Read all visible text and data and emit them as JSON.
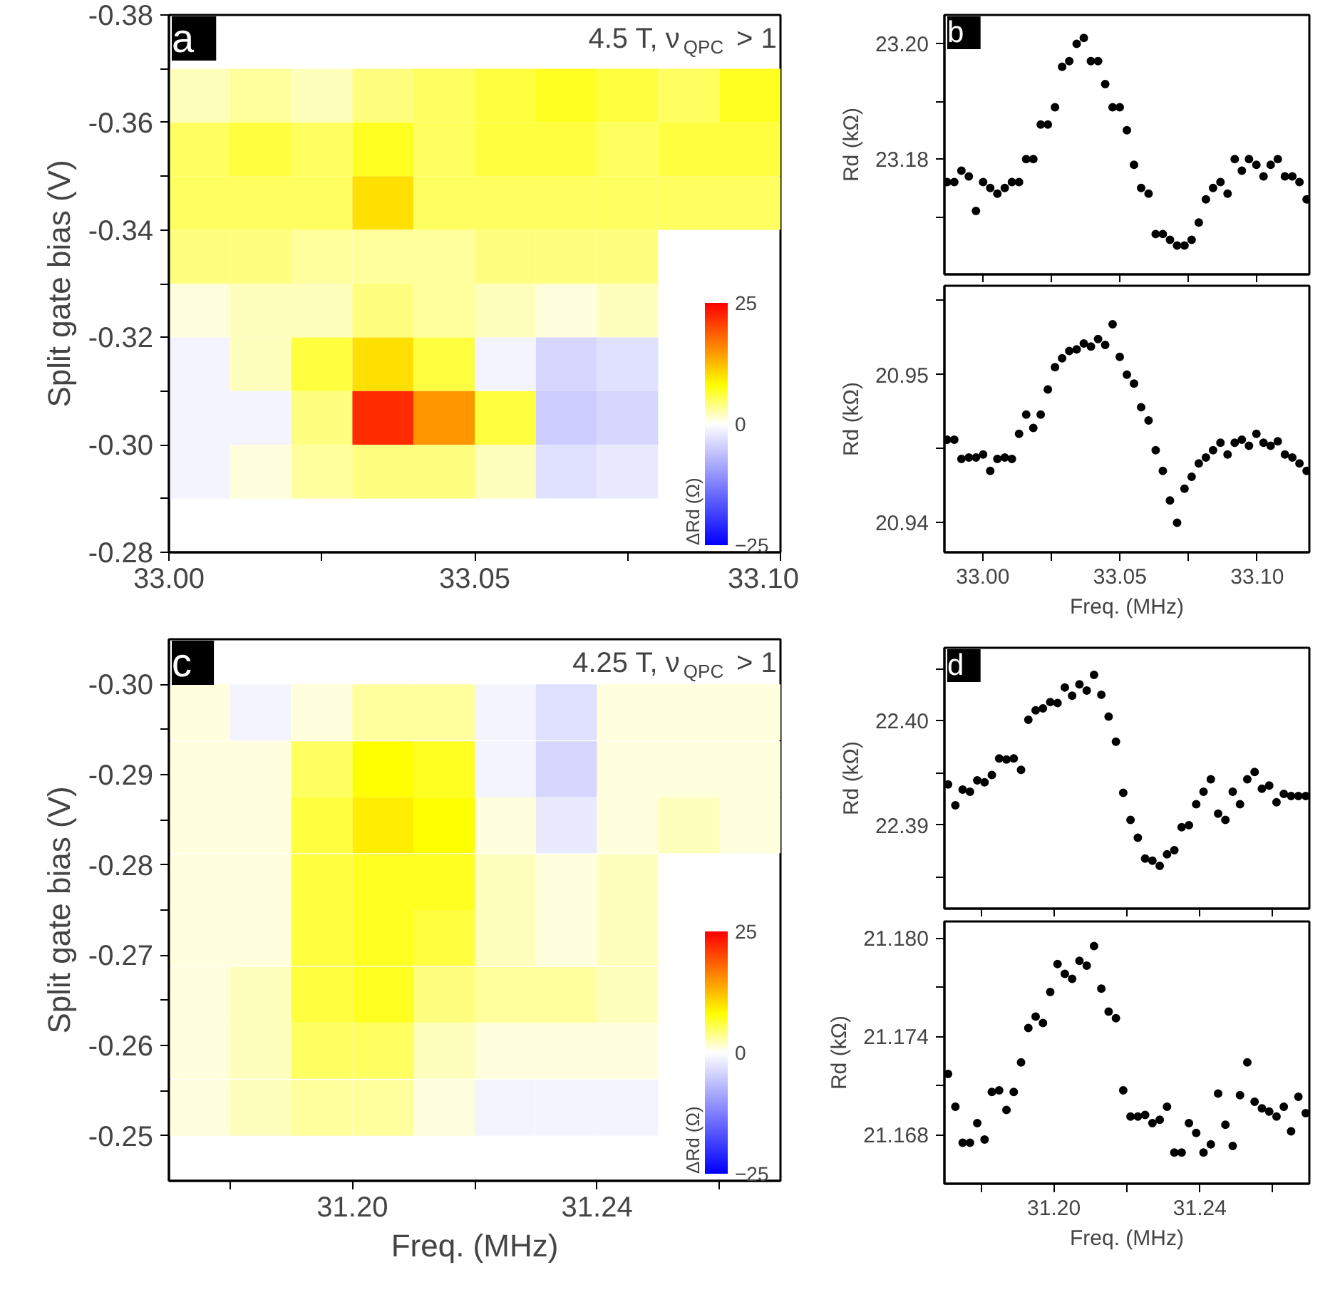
{
  "chart_data": [
    {
      "type": "scatter",
      "marker": "square",
      "title": "a",
      "subtitle": "4.5 T, ν$_{QPC}$ > 1",
      "ylabel": "Split gate bias (V)",
      "clabel": "ΔRd (Ω)",
      "x": [
        33.005,
        33.015,
        33.025,
        33.035,
        33.045,
        33.055,
        33.065,
        33.075,
        33.085,
        33.095,
        33.005,
        33.015,
        33.025,
        33.035,
        33.045,
        33.055,
        33.065,
        33.075,
        33.085,
        33.095,
        33.005,
        33.015,
        33.025,
        33.035,
        33.045,
        33.055,
        33.065,
        33.075,
        33.085,
        33.095,
        33.005,
        33.015,
        33.025,
        33.035,
        33.045,
        33.055,
        33.065,
        33.075,
        33.005,
        33.015,
        33.025,
        33.035,
        33.045,
        33.055,
        33.065,
        33.075,
        33.005,
        33.015,
        33.025,
        33.035,
        33.045,
        33.055,
        33.065,
        33.075,
        33.005,
        33.015,
        33.025,
        33.035,
        33.045,
        33.055,
        33.065,
        33.075,
        33.005,
        33.015,
        33.025,
        33.035,
        33.045,
        33.055,
        33.065,
        33.075
      ],
      "values": [
        -0.365,
        -0.365,
        -0.365,
        -0.365,
        -0.365,
        -0.365,
        -0.365,
        -0.365,
        -0.365,
        -0.365,
        -0.355,
        -0.355,
        -0.355,
        -0.355,
        -0.355,
        -0.355,
        -0.355,
        -0.355,
        -0.355,
        -0.355,
        -0.345,
        -0.345,
        -0.345,
        -0.345,
        -0.345,
        -0.345,
        -0.345,
        -0.345,
        -0.345,
        -0.345,
        -0.335,
        -0.335,
        -0.335,
        -0.335,
        -0.335,
        -0.335,
        -0.335,
        -0.335,
        -0.325,
        -0.325,
        -0.325,
        -0.325,
        -0.325,
        -0.325,
        -0.325,
        -0.325,
        -0.315,
        -0.315,
        -0.315,
        -0.315,
        -0.315,
        -0.315,
        -0.315,
        -0.315,
        -0.305,
        -0.305,
        -0.305,
        -0.305,
        -0.305,
        -0.305,
        -0.305,
        -0.305,
        -0.295,
        -0.295,
        -0.295,
        -0.295,
        -0.295,
        -0.295,
        -0.295,
        -0.295
      ],
      "cvalues": [
        2,
        3,
        2,
        4,
        5,
        6,
        7,
        6,
        5,
        7,
        5,
        6,
        5,
        7,
        5,
        6,
        6,
        5,
        6,
        6,
        5,
        5,
        5,
        10,
        5,
        5,
        5,
        5,
        5,
        5,
        4,
        4,
        3,
        3,
        3,
        4,
        4,
        4,
        1,
        2,
        2,
        4,
        3,
        2,
        1,
        2,
        -1,
        2,
        6,
        10,
        6,
        -1,
        -4,
        -3,
        -1,
        -1,
        4,
        22,
        15,
        6,
        -5,
        -4,
        -1,
        1,
        3,
        4,
        4,
        2,
        -3,
        -2
      ],
      "clim": [
        -25,
        25
      ],
      "cticks": [
        -25,
        0,
        25
      ],
      "xlim": [
        33.0,
        33.1
      ],
      "ylim": [
        -0.28,
        -0.38
      ],
      "xticks": [
        {
          "value": 33.0,
          "label": "33.00"
        },
        {
          "value": 33.025,
          "label": null
        },
        33.05,
        {
          "value": 33.075,
          "label": null
        },
        {
          "value": 33.1,
          "label": "33.10"
        }
      ],
      "yticks": [
        -0.38,
        {
          "value": -0.37,
          "label": null
        },
        -0.36,
        {
          "value": -0.35,
          "label": null
        },
        -0.34,
        {
          "value": -0.33,
          "label": null
        },
        -0.32,
        {
          "value": -0.31,
          "label": null
        },
        {
          "value": -0.3,
          "label": "-0.30"
        },
        {
          "value": -0.29,
          "label": null
        },
        -0.28
      ]
    },
    {
      "type": "scatter",
      "title": "b",
      "ylabel": "Rd (kΩ)",
      "marker": "circle",
      "tick_labels": "y",
      "x": [
        32.987,
        32.9896,
        32.9922,
        32.9949,
        32.9975,
        33.0001,
        33.0027,
        33.0053,
        33.008,
        33.0106,
        33.0132,
        33.0158,
        33.0184,
        33.0211,
        33.0237,
        33.0263,
        33.0289,
        33.0315,
        33.0342,
        33.0368,
        33.0394,
        33.042,
        33.0446,
        33.0473,
        33.0499,
        33.0525,
        33.0551,
        33.0577,
        33.0604,
        33.063,
        33.0656,
        33.0682,
        33.0708,
        33.0735,
        33.0761,
        33.0787,
        33.0813,
        33.0839,
        33.0866,
        33.0892,
        33.0918,
        33.0944,
        33.097,
        33.0997,
        33.1023,
        33.1049,
        33.1075,
        33.1101,
        33.1128,
        33.1154,
        33.118
      ],
      "series": [
        {
          "color": "#000000",
          "values": [
            23.176,
            23.176,
            23.178,
            23.177,
            23.171,
            23.176,
            23.175,
            23.174,
            23.175,
            23.176,
            23.176,
            23.18,
            23.18,
            23.186,
            23.186,
            23.189,
            23.196,
            23.197,
            23.2,
            23.201,
            23.197,
            23.197,
            23.193,
            23.189,
            23.189,
            23.185,
            23.179,
            23.175,
            23.174,
            23.167,
            23.167,
            23.166,
            23.165,
            23.165,
            23.166,
            23.169,
            23.173,
            23.175,
            23.176,
            23.174,
            23.18,
            23.178,
            23.18,
            23.179,
            23.177,
            23.179,
            23.18,
            23.177,
            23.177,
            23.176,
            23.173
          ]
        }
      ],
      "xlim": [
        32.986,
        33.119
      ],
      "ylim": [
        23.16,
        23.205
      ],
      "xticks": [
        33.0,
        33.025,
        33.05,
        33.075,
        33.1
      ],
      "yticks": [
        {
          "value": 23.17,
          "label": null
        },
        23.18,
        {
          "value": 23.19,
          "label": null
        },
        {
          "value": 23.2,
          "label": "23.20"
        }
      ]
    },
    {
      "type": "scatter",
      "ylabel": "Rd (kΩ)",
      "xlabel": "Freq. (MHz)",
      "marker": "circle",
      "x": [
        32.987,
        32.9896,
        32.9922,
        32.9949,
        32.9975,
        33.0001,
        33.0027,
        33.0053,
        33.008,
        33.0106,
        33.0132,
        33.0158,
        33.0184,
        33.0211,
        33.0237,
        33.0263,
        33.0289,
        33.0315,
        33.0342,
        33.0368,
        33.0394,
        33.042,
        33.0446,
        33.0473,
        33.0499,
        33.0525,
        33.0551,
        33.0577,
        33.0604,
        33.063,
        33.0656,
        33.0682,
        33.0708,
        33.0735,
        33.0761,
        33.0787,
        33.0813,
        33.0839,
        33.0866,
        33.0892,
        33.0918,
        33.0944,
        33.097,
        33.0997,
        33.1023,
        33.1049,
        33.1075,
        33.1101,
        33.1128,
        33.1154,
        33.118
      ],
      "series": [
        {
          "color": "#000000",
          "values": [
            20.9456,
            20.9456,
            20.9443,
            20.9444,
            20.9444,
            20.9446,
            20.9435,
            20.9443,
            20.9444,
            20.9443,
            20.946,
            20.9473,
            20.9464,
            20.9473,
            20.949,
            20.9505,
            20.9511,
            20.9516,
            20.9517,
            20.9521,
            20.9519,
            20.9524,
            20.952,
            20.9534,
            20.9512,
            20.95,
            20.9494,
            20.9478,
            20.9469,
            20.9449,
            20.9435,
            20.9415,
            20.94,
            20.9423,
            20.9431,
            20.944,
            20.9444,
            20.9449,
            20.9454,
            20.9446,
            20.9454,
            20.9456,
            20.9452,
            20.946,
            20.9454,
            20.9452,
            20.9455,
            20.9446,
            20.9444,
            20.944,
            20.9435
          ]
        }
      ],
      "xlim": [
        32.986,
        33.119
      ],
      "ylim": [
        20.938,
        20.956
      ],
      "xticks": [
        {
          "value": 33.0,
          "label": "33.00"
        },
        {
          "value": 33.025,
          "label": null
        },
        33.05,
        {
          "value": 33.075,
          "label": null
        },
        {
          "value": 33.1,
          "label": "33.10"
        }
      ],
      "yticks": [
        20.94,
        {
          "value": 20.945,
          "label": null
        },
        20.95,
        {
          "value": 20.955,
          "label": null
        }
      ]
    },
    {
      "type": "scatter",
      "marker": "square",
      "title": "c",
      "subtitle": "4.25 T, ν$_{QPC}$ > 1",
      "xlabel": "Freq. (MHz)",
      "ylabel": "Split gate bias (V)",
      "clabel": "ΔRd (Ω)",
      "x": [
        31.175,
        31.185,
        31.195,
        31.205,
        31.215,
        31.225,
        31.235,
        31.245,
        31.255,
        31.265,
        31.175,
        31.185,
        31.195,
        31.205,
        31.215,
        31.225,
        31.235,
        31.245,
        31.255,
        31.265,
        31.175,
        31.185,
        31.195,
        31.205,
        31.215,
        31.225,
        31.235,
        31.245,
        31.255,
        31.265,
        31.175,
        31.185,
        31.195,
        31.205,
        31.215,
        31.225,
        31.235,
        31.245,
        31.175,
        31.185,
        31.195,
        31.205,
        31.215,
        31.225,
        31.235,
        31.245,
        31.175,
        31.185,
        31.195,
        31.205,
        31.215,
        31.225,
        31.235,
        31.245,
        31.175,
        31.185,
        31.195,
        31.205,
        31.215,
        31.225,
        31.235,
        31.245,
        31.175,
        31.185,
        31.195,
        31.205,
        31.215,
        31.225,
        31.235,
        31.245
      ],
      "values": [
        -0.2969,
        -0.2969,
        -0.2969,
        -0.2969,
        -0.2969,
        -0.2969,
        -0.2969,
        -0.2969,
        -0.2969,
        -0.2969,
        -0.2906,
        -0.2906,
        -0.2906,
        -0.2906,
        -0.2906,
        -0.2906,
        -0.2906,
        -0.2906,
        -0.2906,
        -0.2906,
        -0.2844,
        -0.2844,
        -0.2844,
        -0.2844,
        -0.2844,
        -0.2844,
        -0.2844,
        -0.2844,
        -0.2844,
        -0.2844,
        -0.2781,
        -0.2781,
        -0.2781,
        -0.2781,
        -0.2781,
        -0.2781,
        -0.2781,
        -0.2781,
        -0.2719,
        -0.2719,
        -0.2719,
        -0.2719,
        -0.2719,
        -0.2719,
        -0.2719,
        -0.2719,
        -0.2656,
        -0.2656,
        -0.2656,
        -0.2656,
        -0.2656,
        -0.2656,
        -0.2656,
        -0.2656,
        -0.2594,
        -0.2594,
        -0.2594,
        -0.2594,
        -0.2594,
        -0.2594,
        -0.2594,
        -0.2594,
        -0.2531,
        -0.2531,
        -0.2531,
        -0.2531,
        -0.2531,
        -0.2531,
        -0.2531,
        -0.2531
      ],
      "cvalues": [
        1,
        -1,
        1,
        3,
        3,
        -1,
        -3,
        1,
        1,
        1,
        1,
        1,
        5,
        8,
        7,
        -1,
        -4,
        1,
        1,
        1,
        1,
        1,
        6,
        9,
        8,
        1,
        -2,
        1,
        2,
        1,
        1,
        1,
        6,
        7,
        7,
        2,
        1,
        2,
        1,
        1,
        6,
        7,
        6,
        2,
        1,
        2,
        1,
        2,
        6,
        7,
        4,
        3,
        3,
        2,
        1,
        2,
        5,
        5,
        2,
        1,
        1,
        1,
        1,
        2,
        3,
        3,
        1,
        -1,
        -1,
        -1
      ],
      "clim": [
        -25,
        25
      ],
      "cticks": [
        -25,
        0,
        25
      ],
      "xlim": [
        31.17,
        31.27
      ],
      "ylim": [
        -0.245,
        -0.305
      ],
      "xticks": [
        {
          "value": 31.18,
          "label": null
        },
        {
          "value": 31.2,
          "label": "31.20"
        },
        {
          "value": 31.22,
          "label": null
        },
        31.24,
        {
          "value": 31.26,
          "label": null
        }
      ],
      "yticks": [
        {
          "value": -0.3,
          "label": "-0.30"
        },
        {
          "value": -0.295,
          "label": null
        },
        -0.29,
        {
          "value": -0.285,
          "label": null
        },
        -0.28,
        {
          "value": -0.275,
          "label": null
        },
        -0.27,
        {
          "value": -0.265,
          "label": null
        },
        -0.26,
        {
          "value": -0.255,
          "label": null
        },
        -0.25
      ]
    },
    {
      "type": "scatter",
      "title": "d",
      "ylabel": "Rd (kΩ)",
      "marker": "circle",
      "tick_labels": "y",
      "x": [
        31.171,
        31.173,
        31.175,
        31.177,
        31.179,
        31.181,
        31.183,
        31.185,
        31.187,
        31.189,
        31.191,
        31.193,
        31.195,
        31.197,
        31.199,
        31.201,
        31.203,
        31.205,
        31.207,
        31.209,
        31.211,
        31.213,
        31.215,
        31.217,
        31.219,
        31.221,
        31.223,
        31.225,
        31.227,
        31.229,
        31.231,
        31.233,
        31.235,
        31.237,
        31.239,
        31.241,
        31.243,
        31.245,
        31.247,
        31.249,
        31.251,
        31.253,
        31.255,
        31.257,
        31.259,
        31.261,
        31.263,
        31.265,
        31.267,
        31.269
      ],
      "series": [
        {
          "color": "#000000",
          "values": [
            22.3939,
            22.3919,
            22.3934,
            22.3932,
            22.3943,
            22.3941,
            22.3948,
            22.3964,
            22.3963,
            22.3964,
            22.3953,
            22.4001,
            22.401,
            22.4012,
            22.4018,
            22.4017,
            22.4032,
            22.4024,
            22.4035,
            22.4029,
            22.4044,
            22.4025,
            22.4004,
            22.398,
            22.3931,
            22.3905,
            22.3888,
            22.3868,
            22.3866,
            22.3861,
            22.3872,
            22.3876,
            22.3898,
            22.39,
            22.392,
            22.3932,
            22.3944,
            22.3911,
            22.3905,
            22.3932,
            22.392,
            22.3944,
            22.3951,
            22.3935,
            22.3938,
            22.3922,
            22.393,
            22.3928,
            22.3928,
            22.3928
          ]
        }
      ],
      "xlim": [
        31.17,
        31.27
      ],
      "ylim": [
        22.382,
        22.407
      ],
      "xticks": [
        31.18,
        31.2,
        31.22,
        31.24,
        31.26
      ],
      "yticks": [
        {
          "value": 22.385,
          "label": null
        },
        22.39,
        {
          "value": 22.395,
          "label": null
        },
        {
          "value": 22.4,
          "label": "22.40"
        },
        {
          "value": 22.405,
          "label": null
        }
      ]
    },
    {
      "type": "scatter",
      "ylabel": "Rd (kΩ)",
      "xlabel": "Freq. (MHz)",
      "marker": "circle",
      "x": [
        31.171,
        31.173,
        31.175,
        31.177,
        31.179,
        31.181,
        31.183,
        31.185,
        31.187,
        31.189,
        31.191,
        31.193,
        31.195,
        31.197,
        31.199,
        31.201,
        31.203,
        31.205,
        31.207,
        31.209,
        31.211,
        31.213,
        31.215,
        31.217,
        31.219,
        31.221,
        31.223,
        31.225,
        31.227,
        31.229,
        31.231,
        31.233,
        31.235,
        31.237,
        31.239,
        31.241,
        31.243,
        31.245,
        31.247,
        31.249,
        31.251,
        31.253,
        31.255,
        31.257,
        31.259,
        31.261,
        31.263,
        31.265,
        31.267,
        31.269
      ],
      "series": [
        {
          "color": "#000000",
          "values": [
            21.1717,
            21.1697,
            21.1675,
            21.1675,
            21.1687,
            21.1677,
            21.1706,
            21.1707,
            21.1695,
            21.1706,
            21.1724,
            21.1745,
            21.1752,
            21.1748,
            21.1767,
            21.1784,
            21.1778,
            21.1775,
            21.1786,
            21.1783,
            21.1795,
            21.1769,
            21.1755,
            21.1751,
            21.1707,
            21.1691,
            21.1691,
            21.1692,
            21.1687,
            21.1689,
            21.1697,
            21.1669,
            21.1669,
            21.1687,
            21.1681,
            21.1669,
            21.1674,
            21.1705,
            21.1686,
            21.1673,
            21.1704,
            21.1724,
            21.17,
            21.1696,
            21.1694,
            21.1691,
            21.1697,
            21.1682,
            21.1703,
            21.1693
          ]
        }
      ],
      "xlim": [
        31.17,
        31.27
      ],
      "ylim": [
        21.165,
        21.181
      ],
      "xticks": [
        {
          "value": 31.18,
          "label": null
        },
        {
          "value": 31.2,
          "label": "31.20"
        },
        {
          "value": 31.22,
          "label": null
        },
        31.24,
        {
          "value": 31.26,
          "label": null
        }
      ],
      "yticks": [
        21.168,
        {
          "value": 21.171,
          "label": null
        },
        21.174,
        {
          "value": 21.177,
          "label": null
        },
        {
          "value": 21.18,
          "label": "21.180"
        }
      ]
    }
  ]
}
